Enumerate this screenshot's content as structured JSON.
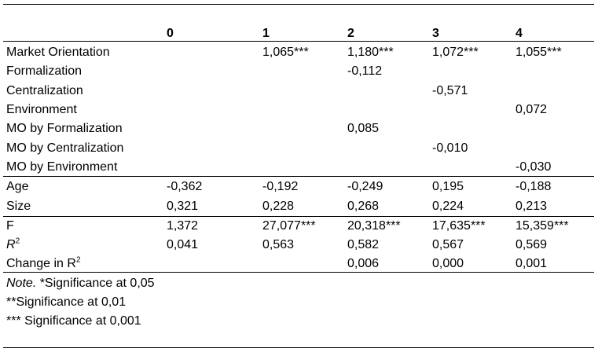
{
  "table": {
    "columns": [
      "0",
      "1",
      "2",
      "3",
      "4"
    ],
    "rows": [
      {
        "label": "Market Orientation",
        "values": [
          "",
          "1,065***",
          "1,180***",
          "1,072***",
          "1,055***"
        ]
      },
      {
        "label": "Formalization",
        "values": [
          "",
          "",
          "-0,112",
          "",
          ""
        ]
      },
      {
        "label": "Centralization",
        "values": [
          "",
          "",
          "",
          "-0,571",
          ""
        ]
      },
      {
        "label": "Environment",
        "values": [
          "",
          "",
          "",
          "",
          "0,072"
        ]
      },
      {
        "label": "MO by Formalization",
        "values": [
          "",
          "",
          "0,085",
          "",
          ""
        ]
      },
      {
        "label": "MO by Centralization",
        "values": [
          "",
          "",
          "",
          "-0,010",
          ""
        ]
      },
      {
        "label": "MO by Environment",
        "values": [
          "",
          "",
          "",
          "",
          "-0,030"
        ]
      },
      {
        "label": "Age",
        "values": [
          "-0,362",
          "-0,192",
          "-0,249",
          "0,195",
          "-0,188"
        ]
      },
      {
        "label": "Size",
        "values": [
          "0,321",
          "0,228",
          "0,268",
          "0,224",
          "0,213"
        ]
      },
      {
        "label": "F",
        "values": [
          "1,372",
          "27,077***",
          "20,318***",
          "17,635***",
          "15,359***"
        ]
      },
      {
        "label_base": "R",
        "label_sup": "2",
        "values": [
          "0,041",
          "0,563",
          "0,582",
          "0,567",
          "0,569"
        ]
      },
      {
        "label": "Change in R",
        "label_sup": "2",
        "values": [
          "",
          "",
          "0,006",
          "0,000",
          "0,001"
        ]
      }
    ]
  },
  "note": {
    "prefix": "Note.",
    "line1": " *Significance at 0,05",
    "line2": "**Significance at 0,01",
    "line3": "*** Significance at 0,001"
  }
}
